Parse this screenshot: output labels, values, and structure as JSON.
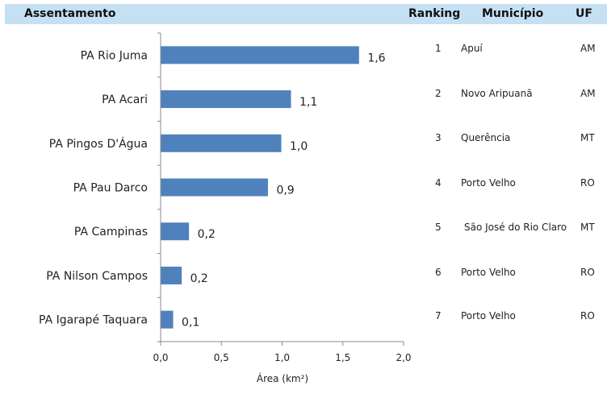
{
  "header": {
    "col_assentamento": "Assentamento",
    "col_ranking": "Ranking",
    "col_municipio": "Município",
    "col_uf": "UF"
  },
  "chart_data": {
    "type": "bar",
    "orientation": "horizontal",
    "categories": [
      "PA Rio Juma",
      "PA Acari",
      "PA Pingos D'Água",
      "PA Pau Darco",
      "PA Campinas",
      "PA Nilson Campos",
      "PA Igarapé Taquara"
    ],
    "values": [
      1.63,
      1.07,
      0.99,
      0.88,
      0.23,
      0.17,
      0.1
    ],
    "value_labels": [
      "1,6",
      "1,1",
      "1,0",
      "0,9",
      "0,2",
      "0,2",
      "0,1"
    ],
    "xlabel": "Área (km²)",
    "ylabel": "",
    "xlim": [
      0,
      2.0
    ],
    "xticks": [
      0,
      0.5,
      1.0,
      1.5,
      2.0
    ],
    "xtick_labels": [
      "0,0",
      "0,5",
      "1,0",
      "1,5",
      "2,0"
    ],
    "bar_color": "#4f81bd",
    "grid": false
  },
  "table": {
    "rows": [
      {
        "rank": "1",
        "municipio": "Apuí",
        "uf": "AM"
      },
      {
        "rank": "2",
        "municipio": "Novo Aripuanã",
        "uf": "AM"
      },
      {
        "rank": "3",
        "municipio": "Querência",
        "uf": "MT"
      },
      {
        "rank": "4",
        "municipio": "Porto Velho",
        "uf": "RO"
      },
      {
        "rank": "5",
        "municipio": "São José do Rio Claro",
        "uf": "MT"
      },
      {
        "rank": "6",
        "municipio": "Porto Velho",
        "uf": "RO"
      },
      {
        "rank": "7",
        "municipio": "Porto Velho",
        "uf": "RO"
      }
    ]
  }
}
